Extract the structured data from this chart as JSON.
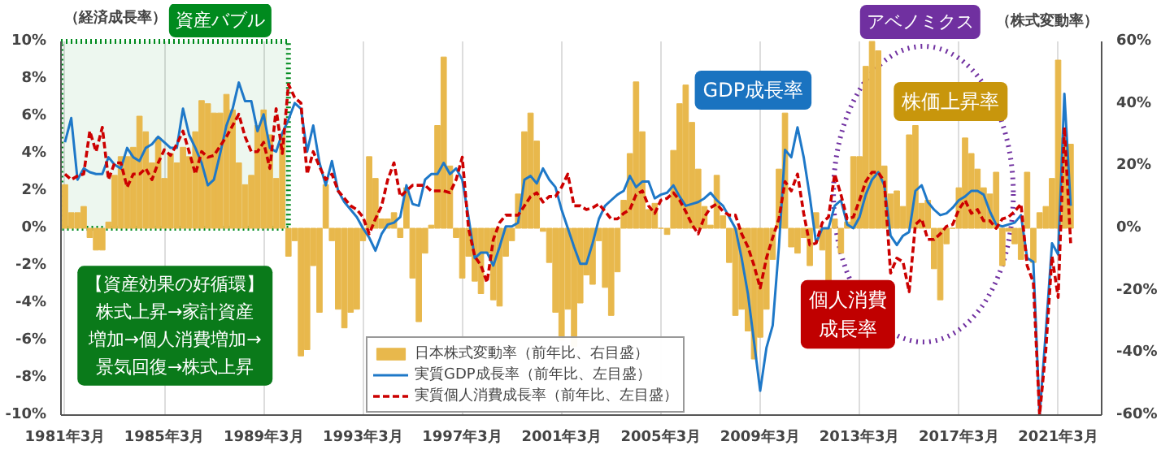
{
  "chart_data": {
    "type": "bar",
    "x": [
      "1981-03",
      "1981-06",
      "1981-09",
      "1981-12",
      "1982-03",
      "1982-06",
      "1982-09",
      "1982-12",
      "1983-03",
      "1983-06",
      "1983-09",
      "1983-12",
      "1984-03",
      "1984-06",
      "1984-09",
      "1984-12",
      "1985-03",
      "1985-06",
      "1985-09",
      "1985-12",
      "1986-03",
      "1986-06",
      "1986-09",
      "1986-12",
      "1987-03",
      "1987-06",
      "1987-09",
      "1987-12",
      "1988-03",
      "1988-06",
      "1988-09",
      "1988-12",
      "1989-03",
      "1989-06",
      "1989-09",
      "1989-12",
      "1990-03",
      "1990-06",
      "1990-09",
      "1990-12",
      "1991-03",
      "1991-06",
      "1991-09",
      "1991-12",
      "1992-03",
      "1992-06",
      "1992-09",
      "1992-12",
      "1993-03",
      "1993-06",
      "1993-09",
      "1993-12",
      "1994-03",
      "1994-06",
      "1994-09",
      "1994-12",
      "1995-03",
      "1995-06",
      "1995-09",
      "1995-12",
      "1996-03",
      "1996-06",
      "1996-09",
      "1996-12",
      "1997-03",
      "1997-06",
      "1997-09",
      "1997-12",
      "1998-03",
      "1998-06",
      "1998-09",
      "1998-12",
      "1999-03",
      "1999-06",
      "1999-09",
      "1999-12",
      "2000-03",
      "2000-06",
      "2000-09",
      "2000-12",
      "2001-03",
      "2001-06",
      "2001-09",
      "2001-12",
      "2002-03",
      "2002-06",
      "2002-09",
      "2002-12",
      "2003-03",
      "2003-06",
      "2003-09",
      "2003-12",
      "2004-03",
      "2004-06",
      "2004-09",
      "2004-12",
      "2005-03",
      "2005-06",
      "2005-09",
      "2005-12",
      "2006-03",
      "2006-06",
      "2006-09",
      "2006-12",
      "2007-03",
      "2007-06",
      "2007-09",
      "2007-12",
      "2008-03",
      "2008-06",
      "2008-09",
      "2008-12",
      "2009-03",
      "2009-06",
      "2009-09",
      "2009-12",
      "2010-03",
      "2010-06",
      "2010-09",
      "2010-12",
      "2011-03",
      "2011-06",
      "2011-09",
      "2011-12",
      "2012-03",
      "2012-06",
      "2012-09",
      "2012-12",
      "2013-03",
      "2013-06",
      "2013-09",
      "2013-12",
      "2014-03",
      "2014-06",
      "2014-09",
      "2014-12",
      "2015-03",
      "2015-06",
      "2015-09",
      "2015-12",
      "2016-03",
      "2016-06",
      "2016-09",
      "2016-12",
      "2017-03",
      "2017-06",
      "2017-09",
      "2017-12",
      "2018-03",
      "2018-06",
      "2018-09",
      "2018-12",
      "2019-03",
      "2019-06",
      "2019-09",
      "2019-12",
      "2020-03",
      "2020-06",
      "2020-09",
      "2020-12",
      "2021-03",
      "2021-06",
      "2021-09"
    ],
    "series": [
      {
        "axis": "y2",
        "name": "日本株式変動率（前年比、右目盛）",
        "color": "#e8b84c",
        "values": [
          14,
          5,
          5,
          7,
          -3,
          -7,
          -7,
          2,
          17,
          23,
          23,
          26,
          36,
          31,
          21,
          29,
          16,
          24,
          21,
          26,
          23,
          31,
          41,
          40,
          37,
          37,
          43,
          38,
          21,
          14,
          17,
          33,
          38,
          30,
          16,
          30,
          -9,
          -4,
          -41,
          -39,
          -12,
          -27,
          14,
          -4,
          -26,
          -32,
          -27,
          -26,
          -4,
          23,
          16,
          3,
          3,
          5,
          -3,
          13,
          -16,
          -30,
          -8,
          1,
          33,
          55,
          20,
          -3,
          -16,
          -9,
          -17,
          -21,
          -8,
          -23,
          -25,
          -9,
          -4,
          11,
          31,
          37,
          28,
          -1,
          -11,
          -27,
          -36,
          -26,
          -38,
          -24,
          -15,
          -18,
          -4,
          -19,
          -28,
          -14,
          9,
          24,
          47,
          31,
          6,
          8,
          0,
          -2,
          25,
          40,
          46,
          34,
          19,
          7,
          1,
          17,
          4,
          -11,
          -28,
          -26,
          -33,
          -42,
          -35,
          -26,
          -10,
          19,
          37,
          -6,
          -8,
          -3,
          -12,
          5,
          -7,
          -17,
          3,
          -8,
          2,
          23,
          23,
          52,
          60,
          57,
          20,
          11,
          12,
          7,
          30,
          33,
          8,
          9,
          -13,
          -23,
          -5,
          0,
          13,
          29,
          24,
          19,
          13,
          11,
          18,
          -12,
          -1,
          -5,
          -10,
          18,
          -11,
          5,
          7,
          16,
          54,
          29,
          27
        ]
      },
      {
        "type": "line",
        "name": "実質GDP成長率（前年比、左目盛）",
        "color": "#1e78c8",
        "line_style": "solid",
        "values": [
          4.6,
          5.9,
          2.6,
          3.2,
          3.0,
          2.9,
          2.9,
          3.8,
          3.4,
          3.2,
          4.3,
          3.8,
          3.6,
          4.3,
          4.5,
          4.9,
          4.6,
          4.3,
          4.3,
          6.4,
          5.0,
          4.3,
          3.5,
          2.3,
          2.6,
          4.0,
          5.5,
          6.4,
          7.8,
          6.8,
          6.8,
          5.2,
          6.1,
          4.3,
          4.1,
          5.1,
          5.8,
          6.7,
          6.4,
          4.1,
          5.5,
          3.5,
          2.3,
          3.6,
          2.0,
          1.4,
          1.0,
          0.6,
          0,
          -0.5,
          -1.2,
          -0.3,
          0.2,
          0.3,
          0.6,
          2.3,
          1.3,
          1.2,
          2.6,
          2.9,
          2.9,
          3.5,
          2.9,
          3.2,
          2.6,
          0.6,
          -1.6,
          -1.3,
          -1.3,
          -2.0,
          -1.0,
          0.1,
          0.1,
          0.3,
          2.6,
          2.8,
          2.4,
          3.2,
          2.6,
          2.2,
          1.0,
          0,
          -1.0,
          -1.9,
          -1.9,
          -0.8,
          0.5,
          1.2,
          1.5,
          1.8,
          2.0,
          2.8,
          2.2,
          2.5,
          2.5,
          1.6,
          1.8,
          1.9,
          2.3,
          1.7,
          1.2,
          1.3,
          1.4,
          1.6,
          1.9,
          1.5,
          1.2,
          0.6,
          0,
          -1.6,
          -3.5,
          -6.1,
          -8.7,
          -6.4,
          -5.2,
          -1.0,
          4.2,
          3.8,
          5.4,
          3.8,
          1.7,
          -0.8,
          0,
          0,
          1.2,
          1.5,
          0.2,
          0,
          0.6,
          1.8,
          2.6,
          3.0,
          2.3,
          -0.4,
          -0.9,
          -0.4,
          -0.2,
          2.0,
          2.3,
          1.4,
          1.0,
          0.7,
          0.8,
          1.1,
          1.5,
          1.7,
          2.0,
          2.0,
          1.8,
          0.9,
          0.2,
          0.1,
          0.2,
          0.3,
          0.7,
          -1.6,
          -1.8,
          -10,
          -5.5,
          -0.8,
          -1.4,
          7.2,
          1.2
        ]
      },
      {
        "type": "line",
        "name": "実質個人消費成長率（前年比、左目盛）",
        "color": "#cc0000",
        "line_style": "dashed",
        "values": [
          2.9,
          2.6,
          2.8,
          2.9,
          5.2,
          4.1,
          5.4,
          2.6,
          3.5,
          3.5,
          2.2,
          2.9,
          2.9,
          3.2,
          2.6,
          3.5,
          4.2,
          3.9,
          4.5,
          5.2,
          4.1,
          2.9,
          4.1,
          3.8,
          3.9,
          4.4,
          4.9,
          5.5,
          6.1,
          4.9,
          4.1,
          4.1,
          4.6,
          3.2,
          6.4,
          4.0,
          7.7,
          7.0,
          6.7,
          2.9,
          4.1,
          3.3,
          2.6,
          2.9,
          2.0,
          1.6,
          1.2,
          1.0,
          0.6,
          -0.3,
          0.5,
          1.2,
          2.6,
          3.5,
          1.7,
          2.0,
          2.3,
          2.3,
          2.3,
          2.0,
          2.0,
          2.0,
          1.9,
          2.6,
          3.8,
          0,
          -1.5,
          -2.0,
          -2.9,
          -0.6,
          0.3,
          0.7,
          0.7,
          0.7,
          1.2,
          1.7,
          1.9,
          1.4,
          1.7,
          1.7,
          2.2,
          2.9,
          1.2,
          1.2,
          1.0,
          1.1,
          1.3,
          0.9,
          0.5,
          0.5,
          0.8,
          1.0,
          1.8,
          2.0,
          1.2,
          0.8,
          1.5,
          1.6,
          1.9,
          1.5,
          0.9,
          0.2,
          -0.3,
          0.6,
          1.1,
          1.3,
          0.9,
          0.7,
          0.7,
          -0.3,
          -1.0,
          -2.0,
          -3.2,
          -1.6,
          -0.5,
          0.5,
          2.5,
          2.0,
          2.9,
          0.8,
          -0.9,
          -0.8,
          0.3,
          0.6,
          2.9,
          1.8,
          0.5,
          0.6,
          1.5,
          2.5,
          3.0,
          3.0,
          2.5,
          -2.4,
          -1.6,
          -1.8,
          -3.4,
          0.2,
          0.5,
          -0.6,
          -0.6,
          -0.3,
          0.1,
          0.2,
          1.0,
          1.5,
          0.8,
          1.0,
          0.4,
          0.4,
          0.0,
          0.5,
          0.6,
          0.9,
          1.3,
          -2.0,
          -2.9,
          -10,
          -6.5,
          -1.5,
          -3.7,
          5.4,
          -0.8
        ]
      }
    ],
    "xlim": [
      "1981-01",
      "2022-12"
    ],
    "xticks": [
      {
        "value": "1981-03",
        "label": "1981年3月"
      },
      {
        "value": "1985-03",
        "label": "1985年3月"
      },
      {
        "value": "1989-03",
        "label": "1989年3月"
      },
      {
        "value": "1993-03",
        "label": "1993年3月"
      },
      {
        "value": "1997-03",
        "label": "1997年3月"
      },
      {
        "value": "2001-03",
        "label": "2001年3月"
      },
      {
        "value": "2005-03",
        "label": "2005年3月"
      },
      {
        "value": "2009-03",
        "label": "2009年3月"
      },
      {
        "value": "2013-03",
        "label": "2013年3月"
      },
      {
        "value": "2017-03",
        "label": "2017年3月"
      },
      {
        "value": "2021-03",
        "label": "2021年3月"
      }
    ],
    "ylim": [
      -10,
      10
    ],
    "yticks": [
      {
        "value": -10,
        "label": "-10%"
      },
      {
        "value": -8,
        "label": "-8%"
      },
      {
        "value": -6,
        "label": "-6%"
      },
      {
        "value": -4,
        "label": "-4%"
      },
      {
        "value": -2,
        "label": "-2%"
      },
      {
        "value": 0,
        "label": "0%"
      },
      {
        "value": 2,
        "label": "2%"
      },
      {
        "value": 4,
        "label": "4%"
      },
      {
        "value": 6,
        "label": "6%"
      },
      {
        "value": 8,
        "label": "8%"
      },
      {
        "value": 10,
        "label": "10%"
      }
    ],
    "y2lim": [
      -60,
      60
    ],
    "y2ticks": [
      {
        "value": -60,
        "label": "-60%"
      },
      {
        "value": -40,
        "label": "-40%"
      },
      {
        "value": -20,
        "label": "-20%"
      },
      {
        "value": 0,
        "label": "0%"
      },
      {
        "value": 20,
        "label": "20%"
      },
      {
        "value": 40,
        "label": "40%"
      },
      {
        "value": 60,
        "label": "60%"
      }
    ],
    "ylabel": "（経済成長率）",
    "y2label": "（株式変動率）",
    "bands": [
      {
        "axis": "x",
        "from": "1981-01",
        "to": "1990-03",
        "label": "資産バブル",
        "color": "#008a1e"
      }
    ],
    "annotations": [
      "アベノミクス",
      "【資産効果の好循環】株式上昇→家計資産増加→個人消費増加→景気回復→株式上昇",
      "GDP成長率",
      "株価上昇率",
      "個人消費成長率"
    ],
    "grid": "x",
    "legend": "bottom"
  }
}
